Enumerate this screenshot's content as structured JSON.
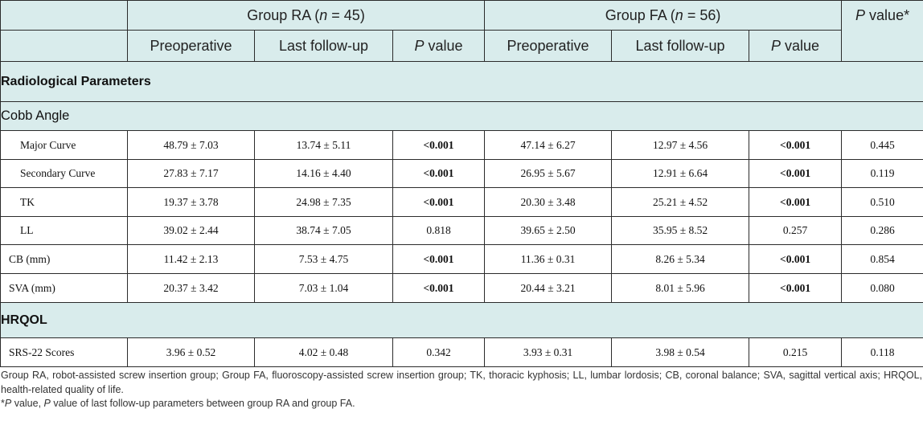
{
  "header": {
    "group_ra_prefix": "Group RA (",
    "group_ra_n": "n",
    "group_ra_suffix": " = 45)",
    "group_fa_prefix": "Group FA (",
    "group_fa_n": "n",
    "group_fa_suffix": " = 56)",
    "p_value_overall_p": "P",
    "p_value_overall_rest": " value*",
    "preoperative": "Preoperative",
    "last_followup": "Last follow-up",
    "p": "P",
    "value": " value"
  },
  "sections": {
    "radiological": "Radiological Parameters",
    "cobb": "Cobb Angle",
    "hrqol": "HRQOL"
  },
  "rows": [
    {
      "label": "Major Curve",
      "ra_pre": "48.79 ± 7.03",
      "ra_last": "13.74 ± 5.11",
      "ra_p": "<0.001",
      "fa_pre": "47.14 ± 6.27",
      "fa_last": "12.97 ± 4.56",
      "fa_p": "<0.001",
      "p": "0.445"
    },
    {
      "label": "Secondary Curve",
      "ra_pre": "27.83 ± 7.17",
      "ra_last": "14.16 ± 4.40",
      "ra_p": "<0.001",
      "fa_pre": "26.95 ± 5.67",
      "fa_last": "12.91 ± 6.64",
      "fa_p": "<0.001",
      "p": "0.119"
    },
    {
      "label": "TK",
      "ra_pre": "19.37 ± 3.78",
      "ra_last": "24.98 ± 7.35",
      "ra_p": "<0.001",
      "fa_pre": "20.30 ± 3.48",
      "fa_last": "25.21 ± 4.52",
      "fa_p": "<0.001",
      "p": "0.510"
    },
    {
      "label": "LL",
      "ra_pre": "39.02 ± 2.44",
      "ra_last": "38.74 ± 7.05",
      "ra_p": "0.818",
      "fa_pre": "39.65 ± 2.50",
      "fa_last": "35.95 ± 8.52",
      "fa_p": "0.257",
      "p": "0.286"
    },
    {
      "label": "CB (mm)",
      "ra_pre": "11.42 ± 2.13",
      "ra_last": "7.53 ± 4.75",
      "ra_p": "<0.001",
      "fa_pre": "11.36 ± 0.31",
      "fa_last": "8.26 ± 5.34",
      "fa_p": "<0.001",
      "p": "0.854"
    },
    {
      "label": "SVA (mm)",
      "ra_pre": "20.37 ± 3.42",
      "ra_last": "7.03 ± 1.04",
      "ra_p": "<0.001",
      "fa_pre": "20.44 ± 3.21",
      "fa_last": "8.01 ± 5.96",
      "fa_p": "<0.001",
      "p": "0.080"
    },
    {
      "label": "SRS-22 Scores",
      "ra_pre": "3.96 ± 0.52",
      "ra_last": "4.02 ± 0.48",
      "ra_p": "0.342",
      "fa_pre": "3.93 ± 0.31",
      "fa_last": "3.98 ± 0.54",
      "fa_p": "0.215",
      "p": "0.118"
    }
  ],
  "footnotes": {
    "abbreviations": "Group RA, robot-assisted screw insertion group; Group FA, fluoroscopy-assisted screw insertion group; TK, thoracic kyphosis; LL, lumbar lordosis; CB, coronal balance; SVA, sagittal vertical axis; HRQOL, health-related quality of life.",
    "pvalue_star": "*",
    "pvalue_p1": "P",
    "pvalue_mid": " value, ",
    "pvalue_p2": "P",
    "pvalue_rest": " value of last follow-up parameters between group RA and group FA."
  }
}
